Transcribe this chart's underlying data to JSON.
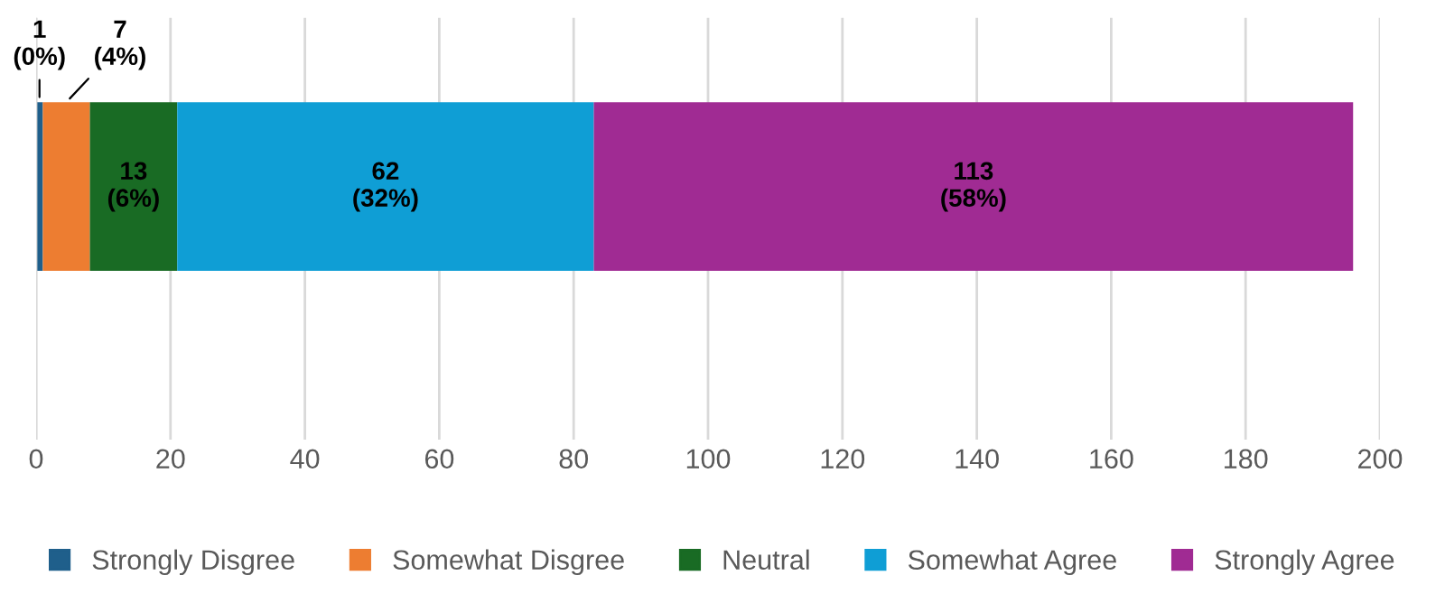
{
  "chart_data": {
    "type": "bar",
    "orientation": "horizontal",
    "stacked": true,
    "categories": [
      null
    ],
    "series": [
      {
        "name": "Strongly Disgree",
        "color": "#1f5f8b",
        "values": [
          1
        ],
        "value_labels": [
          "1\n(0%)"
        ]
      },
      {
        "name": "Somewhat Disgree",
        "color": "#ed7d31",
        "values": [
          7
        ],
        "value_labels": [
          "7\n(4%)"
        ]
      },
      {
        "name": "Neutral",
        "color": "#196b24",
        "values": [
          13
        ],
        "value_labels": [
          "13\n(6%)"
        ]
      },
      {
        "name": "Somewhat Agree",
        "color": "#0f9ed5",
        "values": [
          62
        ],
        "value_labels": [
          "62\n(32%)"
        ]
      },
      {
        "name": "Strongly Agree",
        "color": "#a02b93",
        "values": [
          113
        ],
        "value_labels": [
          "113\n(58%)"
        ]
      }
    ],
    "xlim": [
      0,
      200
    ],
    "xticks": [
      0,
      20,
      40,
      60,
      80,
      100,
      120,
      140,
      160,
      180,
      200
    ],
    "grid": "x",
    "legend": "bottom"
  }
}
